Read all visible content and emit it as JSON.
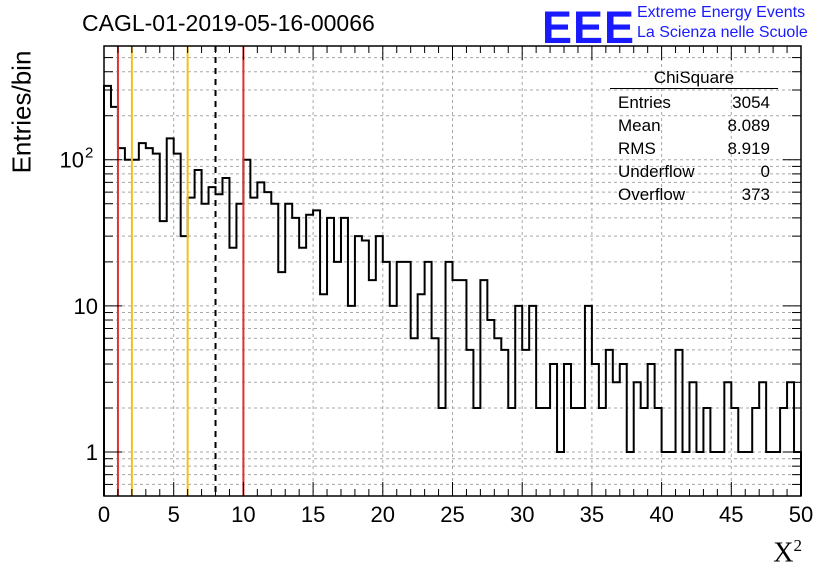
{
  "header": {
    "title": "CAGL-01-2019-05-16-00066",
    "logo_text": "EEE",
    "tagline_1": "Extreme Energy Events",
    "tagline_2": "La Scienza nelle Scuole"
  },
  "stats_box": {
    "title": "ChiSquare",
    "rows": [
      {
        "label": "Entries",
        "value": "3054"
      },
      {
        "label": "Mean",
        "value": "8.089"
      },
      {
        "label": "RMS",
        "value": "8.919"
      },
      {
        "label": "Underflow",
        "value": "0"
      },
      {
        "label": "Overflow",
        "value": "373"
      }
    ]
  },
  "chart_data": {
    "type": "bar",
    "histogram": true,
    "xlabel": "X",
    "xlabel_superscript": "2",
    "ylabel": "Entries/bin",
    "xlim": [
      0,
      50
    ],
    "ylim": [
      0.5,
      600
    ],
    "y_scale": "log",
    "grid": true,
    "bin_width": 0.5,
    "x_ticks": [
      "0",
      "5",
      "10",
      "15",
      "20",
      "25",
      "30",
      "35",
      "40",
      "45",
      "50"
    ],
    "y_ticks": [
      {
        "value": 1,
        "label": "1"
      },
      {
        "value": 10,
        "label": "10"
      },
      {
        "value": 100,
        "label": "10",
        "exponent": "2"
      }
    ],
    "values": [
      320,
      230,
      120,
      100,
      100,
      130,
      120,
      110,
      38,
      140,
      110,
      30,
      55,
      85,
      50,
      65,
      58,
      75,
      25,
      50,
      100,
      55,
      70,
      60,
      50,
      17,
      50,
      40,
      25,
      42,
      45,
      12,
      40,
      20,
      40,
      10,
      30,
      28,
      15,
      30,
      20,
      10,
      20,
      20,
      6,
      12,
      20,
      6,
      2,
      20,
      15,
      15,
      5,
      2,
      15,
      8,
      6,
      5,
      2,
      10,
      5,
      10,
      2,
      2,
      4,
      1,
      4,
      2,
      2,
      10,
      4,
      2,
      5,
      3,
      4,
      1,
      3,
      2,
      4,
      2,
      1,
      1,
      5,
      1,
      3,
      1,
      2,
      1,
      1,
      3,
      2,
      1,
      1,
      2,
      3,
      1,
      1,
      2,
      3,
      1
    ],
    "reference_lines": [
      {
        "x": 1,
        "color": "#e03030",
        "style": "solid"
      },
      {
        "x": 2,
        "color": "#f0c020",
        "style": "solid"
      },
      {
        "x": 6,
        "color": "#f0c020",
        "style": "solid"
      },
      {
        "x": 8,
        "color": "#000000",
        "style": "dashed"
      },
      {
        "x": 10,
        "color": "#e03030",
        "style": "solid"
      }
    ]
  }
}
